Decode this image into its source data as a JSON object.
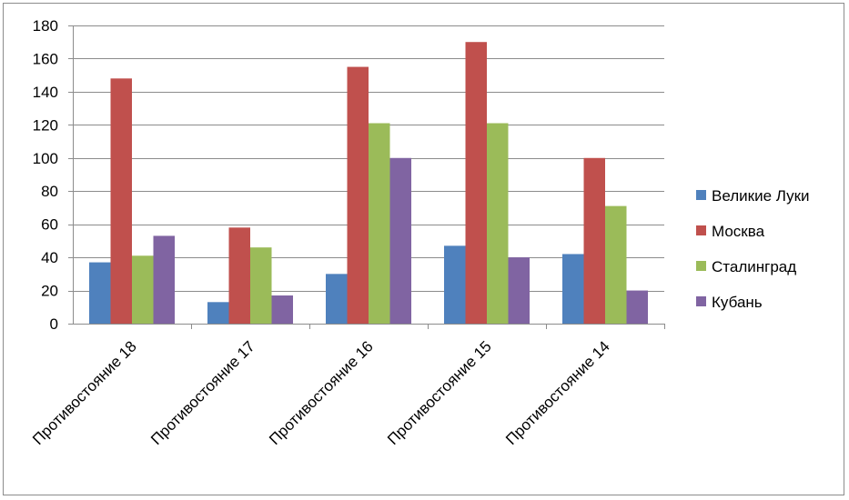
{
  "chart_data": {
    "type": "bar",
    "title": "",
    "xlabel": "",
    "ylabel": "",
    "categories": [
      "Противостояние 18",
      "Противостояние 17",
      "Противостояние 16",
      "Противостояние 15",
      "Противостояние 14"
    ],
    "series": [
      {
        "name": "Великие Луки",
        "color": "#4f81bd",
        "values": [
          37,
          13,
          30,
          47,
          42
        ]
      },
      {
        "name": "Москва",
        "color": "#c0504d",
        "values": [
          148,
          58,
          155,
          170,
          100
        ]
      },
      {
        "name": "Сталинград",
        "color": "#9bbb59",
        "values": [
          41,
          46,
          121,
          121,
          71
        ]
      },
      {
        "name": "Кубань",
        "color": "#8064a2",
        "values": [
          53,
          17,
          100,
          40,
          20
        ]
      }
    ],
    "ylim": [
      0,
      180
    ],
    "yticks": [
      0,
      20,
      40,
      60,
      80,
      100,
      120,
      140,
      160,
      180
    ],
    "grid": true,
    "legend_position": "right"
  }
}
